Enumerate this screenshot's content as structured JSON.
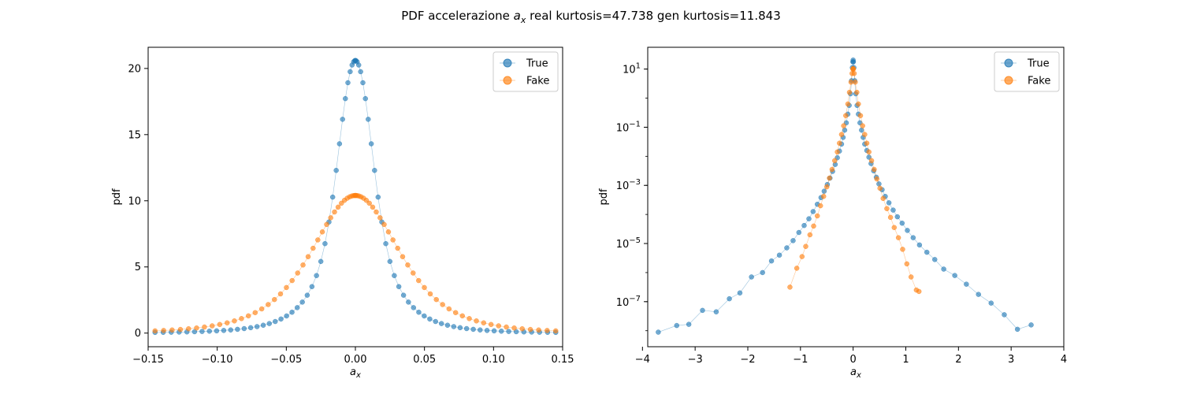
{
  "figure": {
    "title_prefix": "PDF accelerazione ",
    "title_var": "a",
    "title_sub": "x",
    "title_suffix": " real kurtosis=47.738    gen kurtosis=11.843"
  },
  "colors": {
    "true": "#1f77b4",
    "fake": "#ff7f0e"
  },
  "chart_data": [
    {
      "type": "scatter",
      "scale": "linear",
      "xlabel_var": "a",
      "xlabel_sub": "x",
      "ylabel": "pdf",
      "xlim": [
        -0.15,
        0.15
      ],
      "ylim": [
        -1.03,
        21.6
      ],
      "xticks": [
        -0.15,
        -0.1,
        -0.05,
        0.0,
        0.05,
        0.1,
        0.15
      ],
      "xtick_labels": [
        "−0.15",
        "−0.10",
        "−0.05",
        "0.00",
        "0.05",
        "0.10",
        "0.15"
      ],
      "yticks": [
        0,
        5,
        10,
        15,
        20
      ],
      "ytick_labels": [
        "0",
        "5",
        "10",
        "15",
        "20"
      ],
      "legend": {
        "placement": "upper-right",
        "entries": [
          "True",
          "Fake"
        ]
      },
      "series": [
        {
          "name": "True",
          "color_key": "true",
          "model": {
            "kind": "mixture",
            "components": [
              {
                "amp": 10.3,
                "sigma": 0.0108
              },
              {
                "amp": 10.3,
                "sigma": 0.021,
                "tail": 2.6
              }
            ]
          },
          "x_range": [
            -0.145,
            0.145
          ],
          "n_points": 79
        },
        {
          "name": "Fake",
          "color_key": "fake",
          "model": {
            "kind": "mixture",
            "components": [
              {
                "amp": 10.4,
                "sigma": 0.0335,
                "tail": 3.4
              }
            ]
          },
          "x_range": [
            -0.145,
            0.145
          ],
          "n_points": 75
        }
      ]
    },
    {
      "type": "scatter",
      "scale": "log",
      "xlabel_var": "a",
      "xlabel_sub": "x",
      "ylabel": "pdf",
      "xlim": [
        -3.9,
        4.0
      ],
      "ylim_log10": [
        -8.55,
        1.75
      ],
      "xticks": [
        -4,
        -3,
        -2,
        -1,
        0,
        1,
        2,
        3,
        4
      ],
      "xtick_labels": [
        "−4",
        "−3",
        "−2",
        "−1",
        "0",
        "1",
        "2",
        "3",
        "4"
      ],
      "yticks_log10": [
        -7,
        -5,
        -3,
        -1,
        1
      ],
      "ytick_base": "10",
      "ytick_exponents": [
        "−7",
        "−5",
        "−3",
        "−1",
        "1"
      ],
      "legend": {
        "placement": "upper-right",
        "entries": [
          "True",
          "Fake"
        ]
      },
      "series": [
        {
          "name": "True",
          "color_key": "true",
          "points": [
            [
              -3.7,
              -8.05
            ],
            [
              -3.35,
              -7.82
            ],
            [
              -3.12,
              -7.78
            ],
            [
              -2.86,
              -7.3
            ],
            [
              -2.6,
              -7.35
            ],
            [
              -2.35,
              -6.9
            ],
            [
              -2.15,
              -6.7
            ],
            [
              -1.93,
              -6.15
            ],
            [
              -1.72,
              -6.0
            ],
            [
              -1.55,
              -5.6
            ],
            [
              -1.4,
              -5.4
            ],
            [
              -1.26,
              -5.15
            ],
            [
              -1.14,
              -4.9
            ],
            [
              -1.03,
              -4.62
            ],
            [
              -0.93,
              -4.38
            ],
            [
              -0.84,
              -4.15
            ],
            [
              -0.76,
              -3.9
            ],
            [
              -0.68,
              -3.65
            ],
            [
              -0.61,
              -3.42
            ],
            [
              -0.55,
              -3.2
            ],
            [
              -0.49,
              -2.97
            ],
            [
              -0.44,
              -2.75
            ],
            [
              -0.39,
              -2.52
            ],
            [
              -0.34,
              -2.28
            ],
            [
              -0.3,
              -2.05
            ],
            [
              -0.26,
              -1.82
            ],
            [
              -0.22,
              -1.58
            ],
            [
              -0.19,
              -1.35
            ],
            [
              -0.16,
              -1.1
            ],
            [
              -0.13,
              -0.85
            ],
            [
              -0.1,
              -0.55
            ],
            [
              -0.075,
              -0.25
            ],
            [
              -0.05,
              0.15
            ],
            [
              -0.03,
              0.6
            ],
            [
              -0.015,
              1.05
            ],
            [
              -0.005,
              1.25
            ],
            [
              0.0,
              1.31
            ],
            [
              0.005,
              1.25
            ],
            [
              0.015,
              1.05
            ],
            [
              0.03,
              0.6
            ],
            [
              0.05,
              0.15
            ],
            [
              0.075,
              -0.25
            ],
            [
              0.1,
              -0.55
            ],
            [
              0.13,
              -0.85
            ],
            [
              0.16,
              -1.1
            ],
            [
              0.19,
              -1.35
            ],
            [
              0.22,
              -1.58
            ],
            [
              0.26,
              -1.8
            ],
            [
              0.3,
              -2.03
            ],
            [
              0.34,
              -2.25
            ],
            [
              0.39,
              -2.5
            ],
            [
              0.44,
              -2.72
            ],
            [
              0.49,
              -2.95
            ],
            [
              0.55,
              -3.15
            ],
            [
              0.61,
              -3.38
            ],
            [
              0.68,
              -3.6
            ],
            [
              0.76,
              -3.85
            ],
            [
              0.84,
              -4.08
            ],
            [
              0.93,
              -4.3
            ],
            [
              1.03,
              -4.55
            ],
            [
              1.14,
              -4.8
            ],
            [
              1.26,
              -5.05
            ],
            [
              1.4,
              -5.3
            ],
            [
              1.55,
              -5.55
            ],
            [
              1.72,
              -5.88
            ],
            [
              1.93,
              -6.1
            ],
            [
              2.15,
              -6.4
            ],
            [
              2.38,
              -6.75
            ],
            [
              2.62,
              -7.05
            ],
            [
              2.87,
              -7.45
            ],
            [
              3.12,
              -7.95
            ],
            [
              3.38,
              -7.8
            ]
          ]
        },
        {
          "name": "Fake",
          "color_key": "fake",
          "points": [
            [
              -1.2,
              -6.5
            ],
            [
              -1.07,
              -5.85
            ],
            [
              -0.97,
              -5.45
            ],
            [
              -0.9,
              -5.1
            ],
            [
              -0.82,
              -4.7
            ],
            [
              -0.75,
              -4.4
            ],
            [
              -0.68,
              -4.05
            ],
            [
              -0.62,
              -3.7
            ],
            [
              -0.56,
              -3.38
            ],
            [
              -0.5,
              -3.05
            ],
            [
              -0.45,
              -2.75
            ],
            [
              -0.4,
              -2.45
            ],
            [
              -0.35,
              -2.15
            ],
            [
              -0.3,
              -1.85
            ],
            [
              -0.26,
              -1.55
            ],
            [
              -0.22,
              -1.25
            ],
            [
              -0.18,
              -0.95
            ],
            [
              -0.14,
              -0.6
            ],
            [
              -0.1,
              -0.2
            ],
            [
              -0.07,
              0.2
            ],
            [
              -0.04,
              0.55
            ],
            [
              -0.02,
              0.85
            ],
            [
              -0.005,
              1.0
            ],
            [
              0.0,
              1.02
            ],
            [
              0.005,
              1.0
            ],
            [
              0.02,
              0.85
            ],
            [
              0.04,
              0.55
            ],
            [
              0.07,
              0.2
            ],
            [
              0.1,
              -0.2
            ],
            [
              0.14,
              -0.6
            ],
            [
              0.18,
              -0.95
            ],
            [
              0.22,
              -1.25
            ],
            [
              0.26,
              -1.55
            ],
            [
              0.3,
              -1.85
            ],
            [
              0.35,
              -2.15
            ],
            [
              0.4,
              -2.45
            ],
            [
              0.45,
              -2.78
            ],
            [
              0.51,
              -3.1
            ],
            [
              0.57,
              -3.45
            ],
            [
              0.64,
              -3.8
            ],
            [
              0.71,
              -4.1
            ],
            [
              0.78,
              -4.45
            ],
            [
              0.86,
              -4.8
            ],
            [
              0.94,
              -5.2
            ],
            [
              1.02,
              -5.7
            ],
            [
              1.1,
              -6.15
            ],
            [
              1.2,
              -6.6
            ],
            [
              1.25,
              -6.65
            ]
          ]
        }
      ]
    }
  ]
}
